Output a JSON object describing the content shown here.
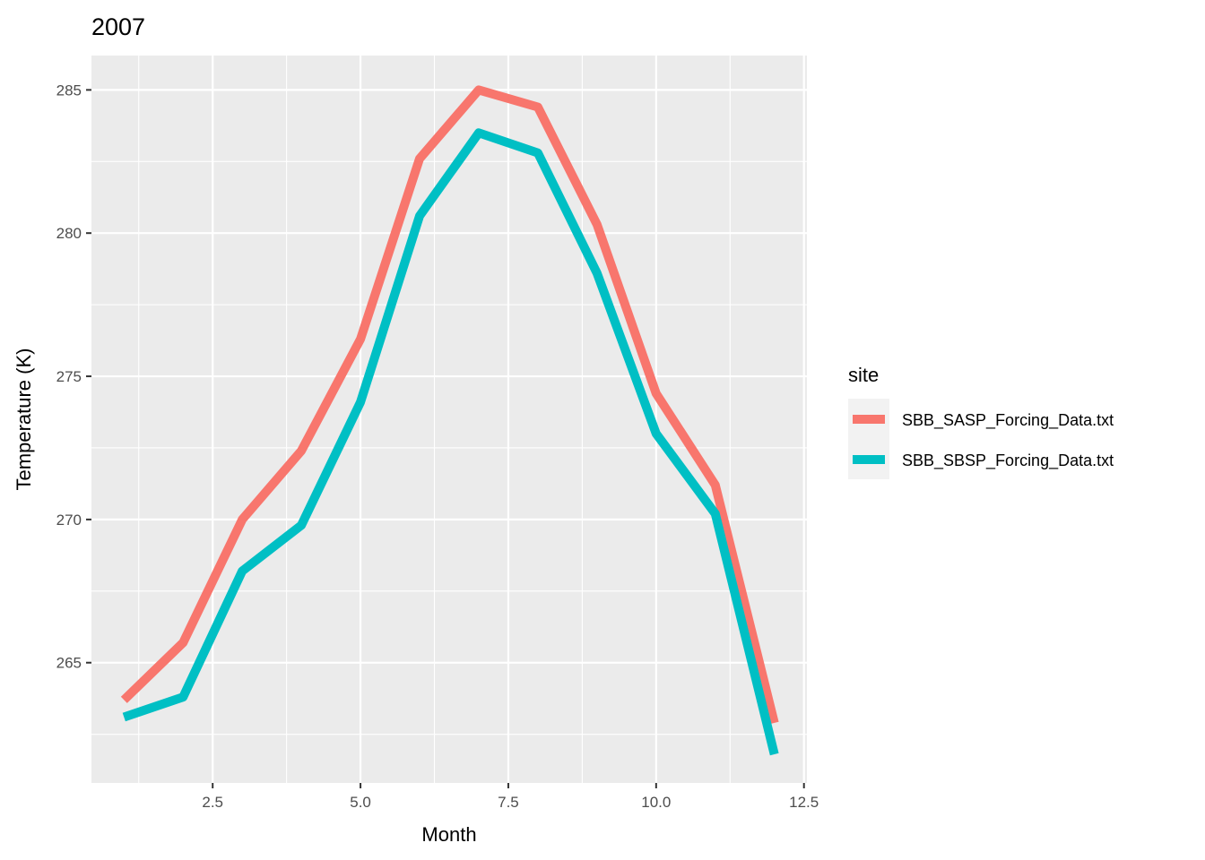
{
  "chart_data": {
    "type": "line",
    "title": "2007",
    "xlabel": "Month",
    "ylabel": "Temperature (K)",
    "xlim": [
      0.45,
      12.55
    ],
    "ylim": [
      260.8,
      286.2
    ],
    "x_ticks": [
      2.5,
      5.0,
      7.5,
      10.0,
      12.5
    ],
    "x_tick_labels": [
      "2.5",
      "5.0",
      "7.5",
      "10.0",
      "12.5"
    ],
    "y_ticks": [
      265,
      270,
      275,
      280,
      285
    ],
    "y_tick_labels": [
      "265",
      "270",
      "275",
      "280",
      "285"
    ],
    "grid": true,
    "legend_title": "site",
    "legend_position": "right",
    "x": [
      1,
      2,
      3,
      4,
      5,
      6,
      7,
      8,
      9,
      10,
      11,
      12
    ],
    "series": [
      {
        "name": "SBB_SASP_Forcing_Data.txt",
        "color": "#F8766D",
        "values": [
          263.7,
          265.7,
          270.0,
          272.4,
          276.3,
          282.6,
          285.0,
          284.4,
          280.3,
          274.4,
          271.2,
          262.9
        ]
      },
      {
        "name": "SBB_SBSP_Forcing_Data.txt",
        "color": "#00BFC4",
        "values": [
          263.1,
          263.8,
          268.2,
          269.8,
          274.1,
          280.6,
          283.5,
          282.8,
          278.6,
          273.0,
          270.2,
          261.8
        ]
      }
    ]
  }
}
